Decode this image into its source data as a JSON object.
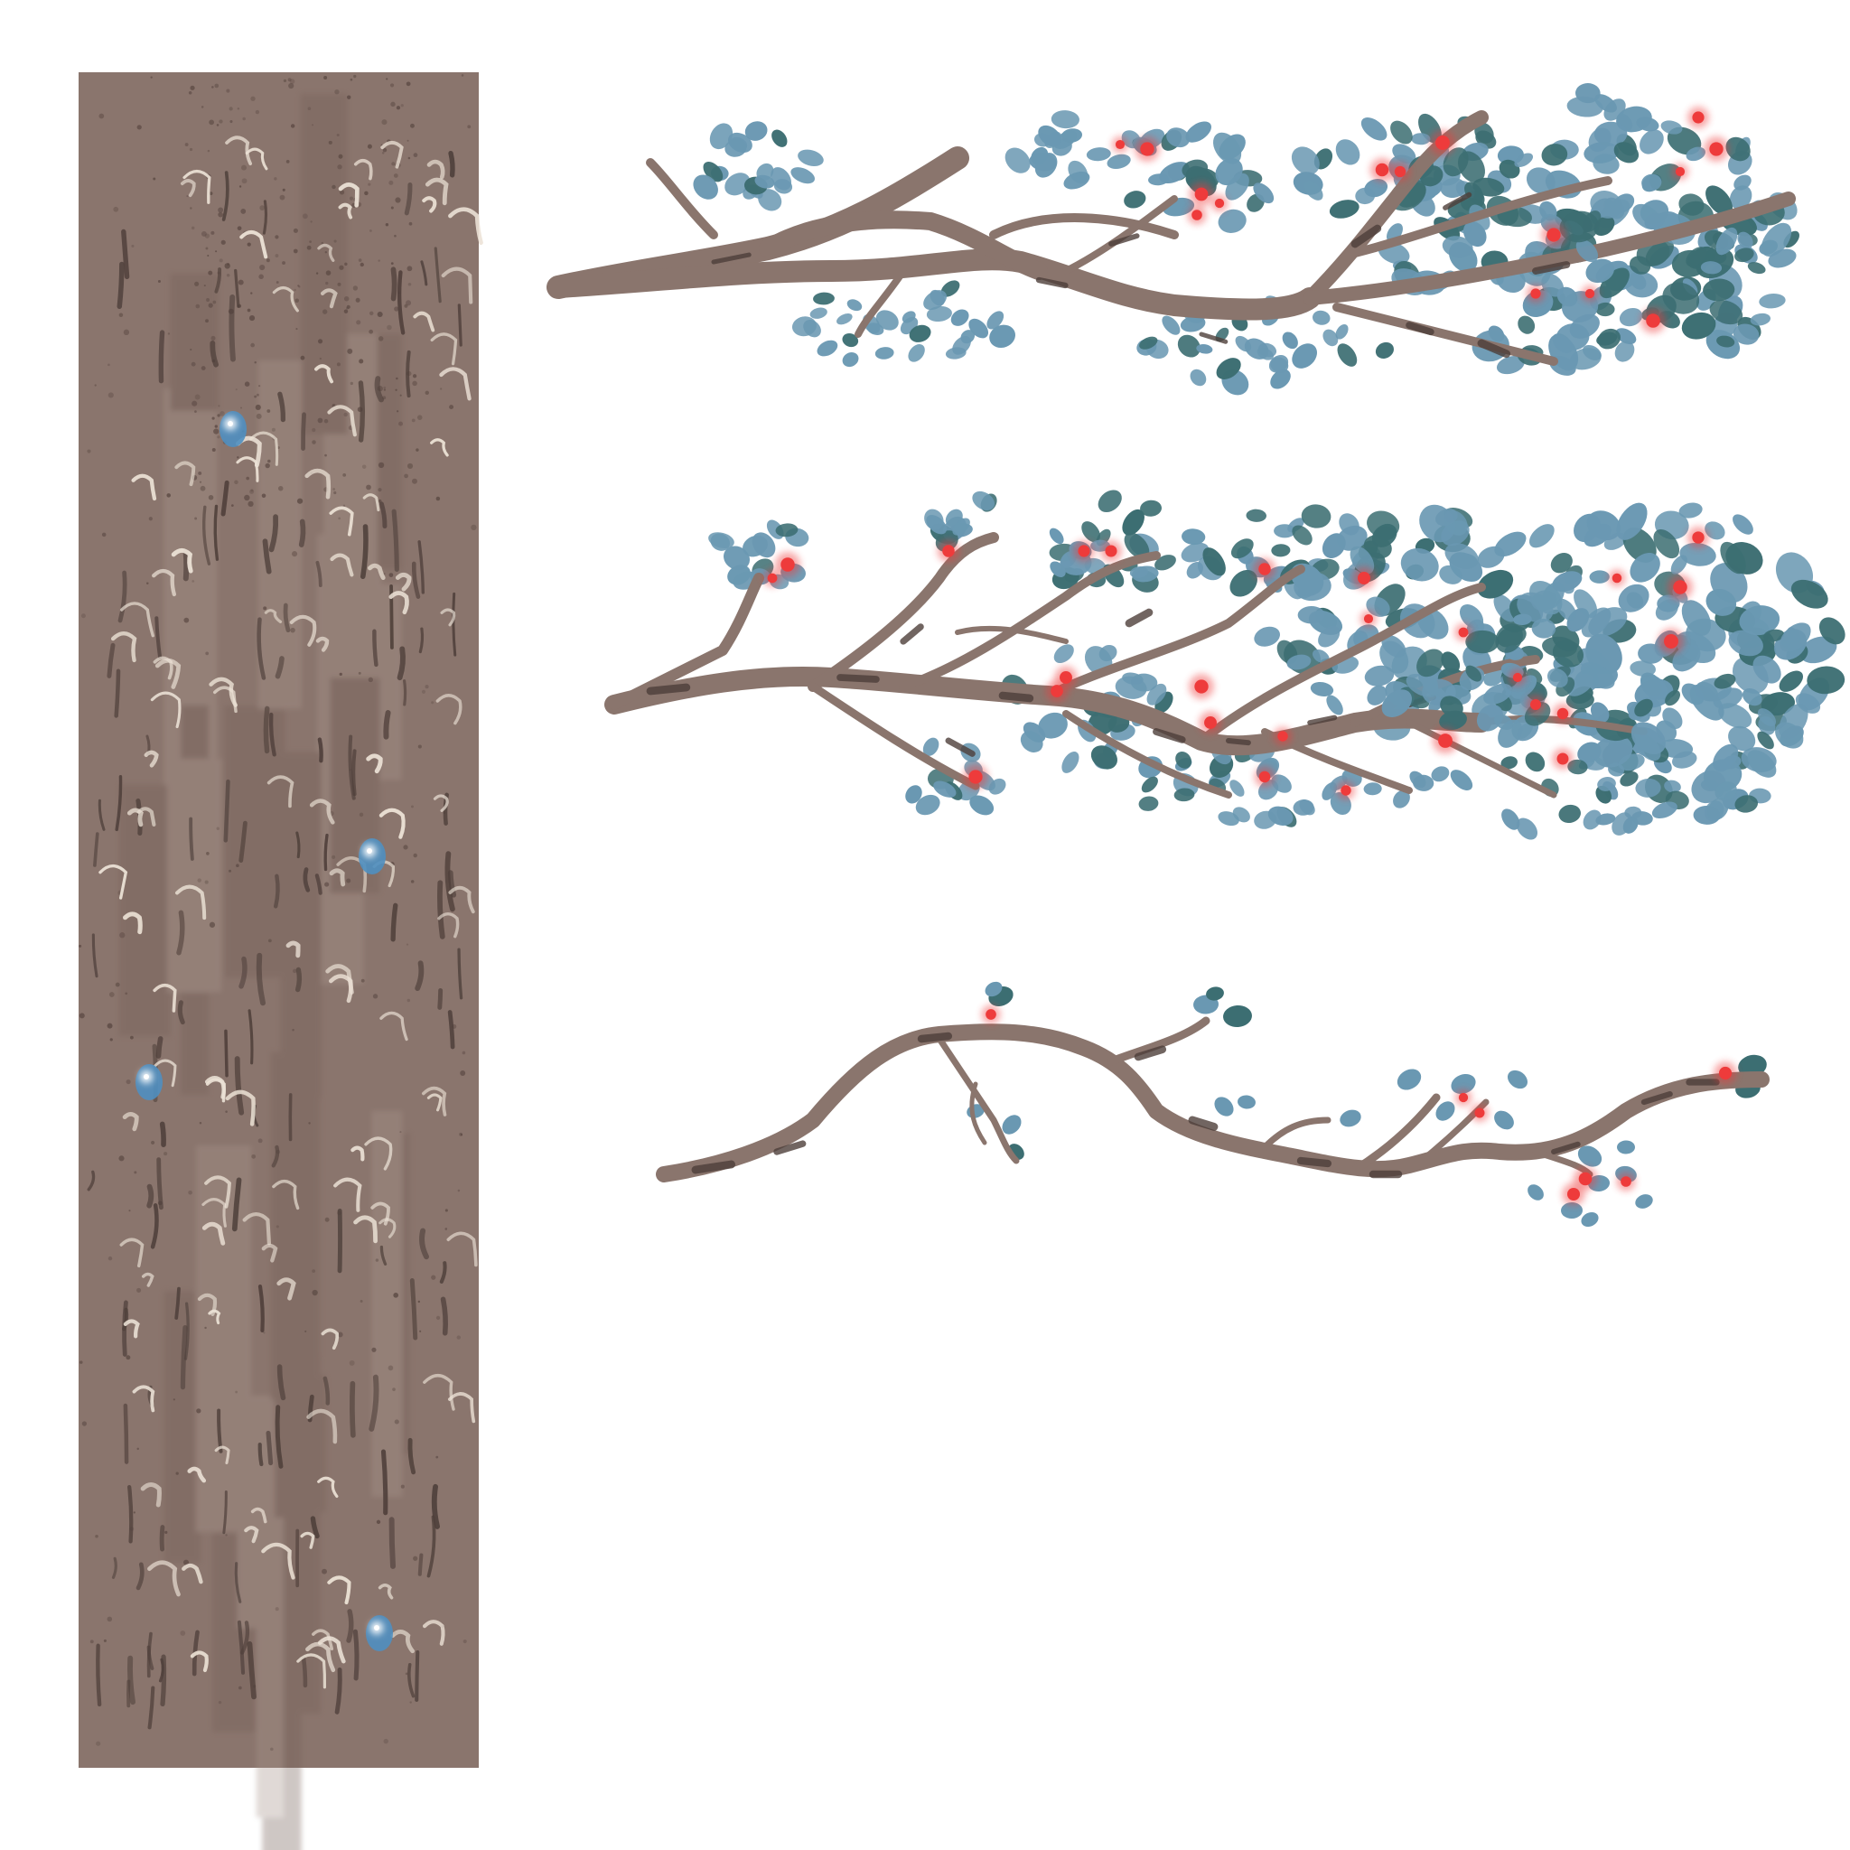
{
  "palette": {
    "background": "#ffffff",
    "bark": "#8a756d",
    "bark_dark": "#4e3f3a",
    "bark_light": "#a8958c",
    "bark_mark_light": "#ece2d6",
    "leaf_blue": "#6a98b2",
    "leaf_teal": "#3c6e72",
    "berry_red": "#ee3b3b",
    "gem_blue": "#4f8fc0"
  },
  "assets": [
    {
      "name": "bark-texture-panel",
      "kind": "bark texture tile"
    },
    {
      "name": "branch-dense-top",
      "kind": "leafy branch with berries"
    },
    {
      "name": "branch-dense-middle",
      "kind": "leafy branch with berries"
    },
    {
      "name": "branch-sparse-bottom",
      "kind": "sparse branch with berries"
    }
  ]
}
